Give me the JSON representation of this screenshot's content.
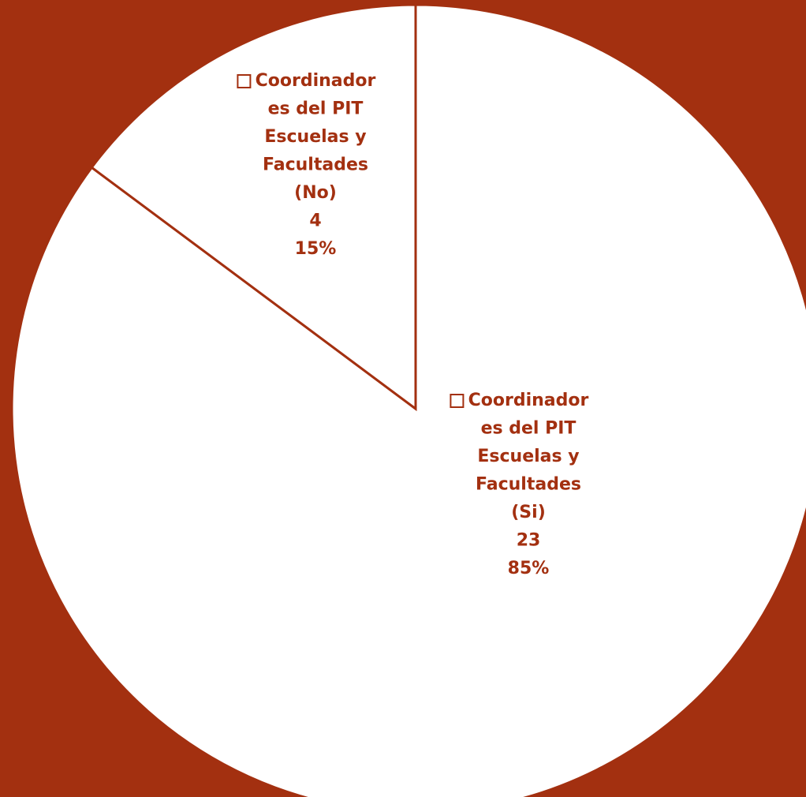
{
  "chart_data": {
    "type": "pie",
    "categories": [
      "Coordinadores del PIT Escuelas y Facultades (Si)",
      "Coordinadores del PIT Escuelas y Facultades (No)"
    ],
    "values": [
      23,
      4
    ],
    "percent_labels": [
      "85%",
      "15%"
    ],
    "colors": [
      "#ffffff",
      "#ffffff"
    ],
    "background": "#a33010",
    "label_color": "#a33010"
  }
}
